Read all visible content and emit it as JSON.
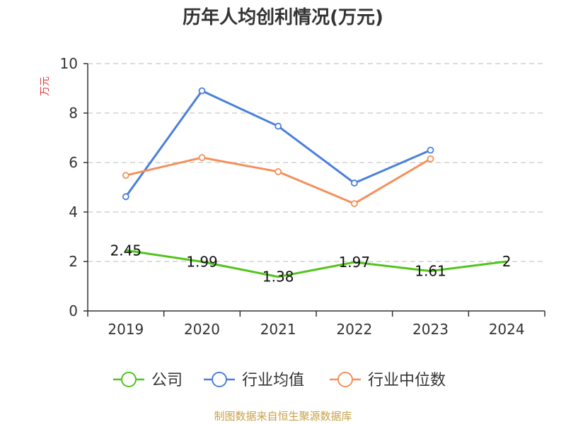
{
  "chart_data": {
    "type": "line",
    "title": "历年人均创利情况(万元)",
    "ylabel": "万元",
    "xlabel": "",
    "categories": [
      "2019",
      "2020",
      "2021",
      "2022",
      "2023",
      "2024"
    ],
    "ylim": [
      0,
      10
    ],
    "yticks": [
      0,
      2,
      4,
      6,
      8,
      10
    ],
    "grid": true,
    "legend_position": "bottom",
    "series": [
      {
        "name": "公司",
        "values": [
          2.45,
          1.99,
          1.38,
          1.97,
          1.61,
          2
        ],
        "labels": [
          "2.45",
          "1.99",
          "1.38",
          "1.97",
          "1.61",
          "2"
        ],
        "color": "#52c41a"
      },
      {
        "name": "行业均值",
        "values": [
          4.62,
          8.9,
          7.47,
          5.17,
          6.5,
          null
        ],
        "color": "#4a7fdc"
      },
      {
        "name": "行业中位数",
        "values": [
          5.48,
          6.2,
          5.63,
          4.34,
          6.15,
          null
        ],
        "color": "#f5905a"
      }
    ],
    "source": "制图数据来自恒生聚源数据库"
  }
}
